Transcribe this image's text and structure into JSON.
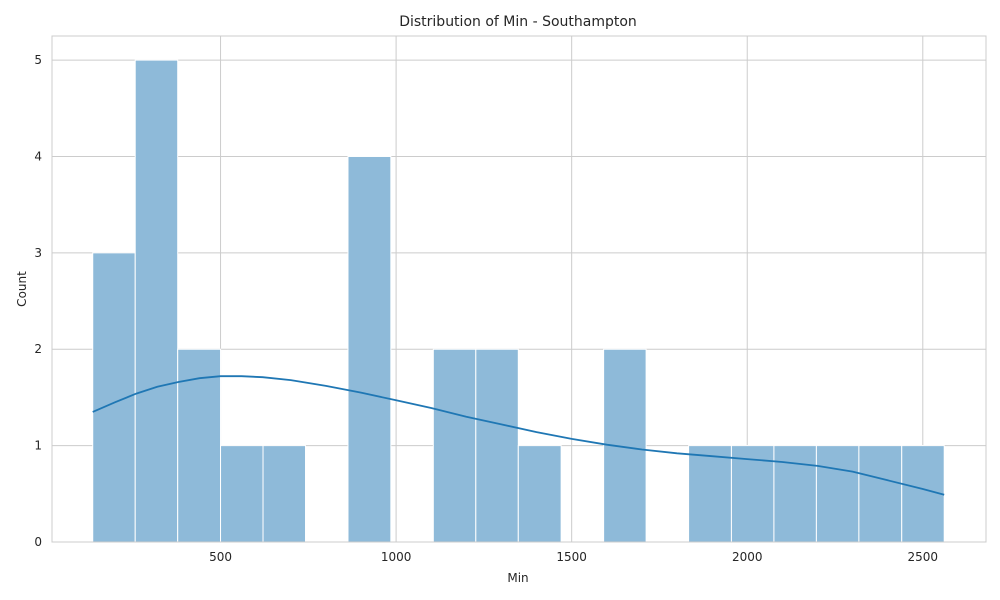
{
  "chart_data": {
    "type": "bar",
    "subtype": "histogram",
    "title": "Distribution of Min - Southampton",
    "xlabel": "Min",
    "ylabel": "Count",
    "xlim": [
      20,
      2680
    ],
    "ylim": [
      0,
      5.25
    ],
    "xticks": [
      500,
      1000,
      1500,
      2000,
      2500
    ],
    "yticks": [
      0,
      1,
      2,
      3,
      4,
      5
    ],
    "grid": true,
    "bins": [
      {
        "start": 136,
        "end": 257,
        "count": 3
      },
      {
        "start": 257,
        "end": 378,
        "count": 5
      },
      {
        "start": 378,
        "end": 500,
        "count": 2
      },
      {
        "start": 500,
        "end": 621,
        "count": 1
      },
      {
        "start": 621,
        "end": 742,
        "count": 1
      },
      {
        "start": 742,
        "end": 863,
        "count": 0
      },
      {
        "start": 863,
        "end": 985,
        "count": 4
      },
      {
        "start": 985,
        "end": 1106,
        "count": 0
      },
      {
        "start": 1106,
        "end": 1227,
        "count": 2
      },
      {
        "start": 1227,
        "end": 1348,
        "count": 2
      },
      {
        "start": 1348,
        "end": 1470,
        "count": 1
      },
      {
        "start": 1470,
        "end": 1591,
        "count": 0
      },
      {
        "start": 1591,
        "end": 1712,
        "count": 2
      },
      {
        "start": 1712,
        "end": 1833,
        "count": 0
      },
      {
        "start": 1833,
        "end": 1955,
        "count": 1
      },
      {
        "start": 1955,
        "end": 2076,
        "count": 1
      },
      {
        "start": 2076,
        "end": 2197,
        "count": 1
      },
      {
        "start": 2197,
        "end": 2318,
        "count": 1
      },
      {
        "start": 2318,
        "end": 2440,
        "count": 1
      },
      {
        "start": 2440,
        "end": 2561,
        "count": 1
      }
    ],
    "kde": [
      {
        "x": 136,
        "y": 1.35
      },
      {
        "x": 200,
        "y": 1.45
      },
      {
        "x": 260,
        "y": 1.54
      },
      {
        "x": 320,
        "y": 1.61
      },
      {
        "x": 380,
        "y": 1.66
      },
      {
        "x": 440,
        "y": 1.7
      },
      {
        "x": 500,
        "y": 1.72
      },
      {
        "x": 560,
        "y": 1.72
      },
      {
        "x": 620,
        "y": 1.71
      },
      {
        "x": 700,
        "y": 1.68
      },
      {
        "x": 800,
        "y": 1.62
      },
      {
        "x": 900,
        "y": 1.55
      },
      {
        "x": 1000,
        "y": 1.47
      },
      {
        "x": 1100,
        "y": 1.39
      },
      {
        "x": 1200,
        "y": 1.3
      },
      {
        "x": 1300,
        "y": 1.22
      },
      {
        "x": 1400,
        "y": 1.14
      },
      {
        "x": 1500,
        "y": 1.07
      },
      {
        "x": 1600,
        "y": 1.01
      },
      {
        "x": 1700,
        "y": 0.96
      },
      {
        "x": 1800,
        "y": 0.92
      },
      {
        "x": 1900,
        "y": 0.89
      },
      {
        "x": 2000,
        "y": 0.86
      },
      {
        "x": 2100,
        "y": 0.83
      },
      {
        "x": 2200,
        "y": 0.79
      },
      {
        "x": 2300,
        "y": 0.73
      },
      {
        "x": 2400,
        "y": 0.64
      },
      {
        "x": 2500,
        "y": 0.55
      },
      {
        "x": 2561,
        "y": 0.49
      }
    ],
    "colors": {
      "bar_fill": "#8ebad9",
      "kde_line": "#1f77b4",
      "grid": "#cccccc"
    }
  }
}
